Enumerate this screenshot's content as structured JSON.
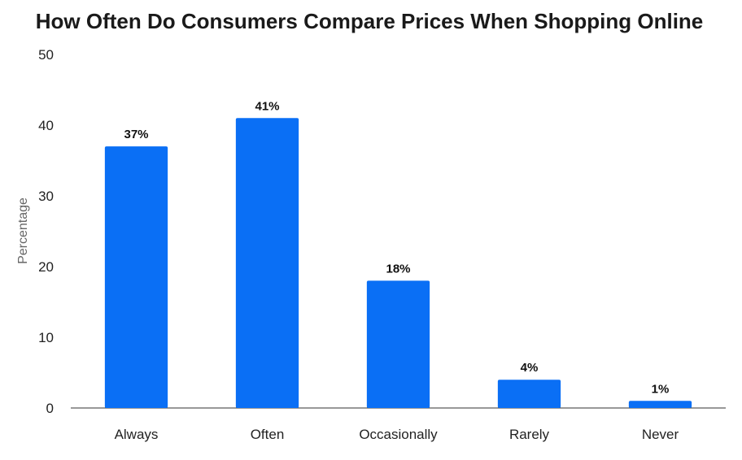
{
  "chart_data": {
    "type": "bar",
    "title": "How Often Do Consumers Compare Prices When Shopping Online",
    "xlabel": "",
    "ylabel": "Percentage",
    "categories": [
      "Always",
      "Often",
      "Occasionally",
      "Rarely",
      "Never"
    ],
    "values": [
      37,
      41,
      18,
      4,
      1
    ],
    "data_labels": [
      "37%",
      "41%",
      "18%",
      "4%",
      "1%"
    ],
    "ylim": [
      0,
      50
    ],
    "yticks": [
      0,
      10,
      20,
      30,
      40,
      50
    ],
    "grid": false,
    "legend": "none",
    "bar_color": "#0a6ff5"
  }
}
